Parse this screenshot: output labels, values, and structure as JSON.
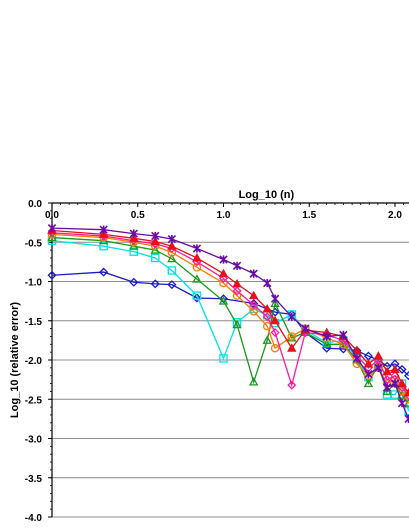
{
  "chart_data": {
    "type": "line",
    "xlabel": "Log_10 (n)",
    "ylabel": "Log_10 (relative error)",
    "xlim": [
      0,
      2.1
    ],
    "ylim": [
      -4.0,
      0.0
    ],
    "x_axis_position": "top",
    "x_ticks": [
      "0.0",
      "0.5",
      "1.0",
      "1.5",
      "2.0"
    ],
    "x_tick_values": [
      0,
      0.5,
      1.0,
      1.5,
      2.0
    ],
    "y_ticks": [
      "0.0",
      "-0.5",
      "-1.0",
      "-1.5",
      "-2.0",
      "-2.5",
      "-3.0",
      "-3.5",
      "-4.0"
    ],
    "y_tick_values": [
      0,
      -0.5,
      -1.0,
      -1.5,
      -2.0,
      -2.5,
      -3.0,
      -3.5,
      -4.0
    ],
    "grid": "horizontal",
    "legend": "none",
    "series": [
      {
        "color": "#1a1ac8",
        "marker": "diamond",
        "x": [
          0,
          0.301,
          0.477,
          0.602,
          0.699,
          0.845,
          1.0,
          1.176,
          1.301,
          1.398,
          1.477,
          1.602,
          1.699,
          1.778,
          1.845,
          1.903,
          1.954,
          2.0,
          2.041,
          2.079
        ],
        "y": [
          -0.92,
          -0.88,
          -1.01,
          -1.03,
          -1.04,
          -1.21,
          -1.22,
          -1.28,
          -1.39,
          -1.42,
          -1.65,
          -1.85,
          -1.86,
          -1.88,
          -1.95,
          -2.0,
          -2.08,
          -2.05,
          -2.12,
          -2.2
        ]
      },
      {
        "color": "#00e5e5",
        "marker": "square",
        "x": [
          0,
          0.301,
          0.477,
          0.602,
          0.699,
          0.845,
          1.0,
          1.079,
          1.176,
          1.255,
          1.301,
          1.398,
          1.477,
          1.602,
          1.699,
          1.778,
          1.845,
          1.903,
          1.954,
          2.0,
          2.041,
          2.079
        ],
        "y": [
          -0.48,
          -0.55,
          -0.62,
          -0.7,
          -0.86,
          -1.18,
          -1.98,
          -1.52,
          -1.35,
          -1.43,
          -1.53,
          -1.42,
          -1.62,
          -1.78,
          -1.75,
          -1.98,
          -2.22,
          -2.05,
          -2.44,
          -2.44,
          -2.3,
          -2.65
        ]
      },
      {
        "color": "#1a9a1a",
        "marker": "triangle",
        "x": [
          0,
          0.301,
          0.477,
          0.602,
          0.699,
          0.845,
          1.0,
          1.079,
          1.176,
          1.255,
          1.301,
          1.398,
          1.477,
          1.602,
          1.699,
          1.778,
          1.845,
          1.903,
          1.954,
          2.0,
          2.041,
          2.079
        ],
        "y": [
          -0.44,
          -0.48,
          -0.55,
          -0.6,
          -0.71,
          -0.97,
          -1.25,
          -1.55,
          -2.28,
          -1.75,
          -1.28,
          -1.72,
          -1.65,
          -1.8,
          -1.8,
          -2.0,
          -2.3,
          -2.05,
          -2.4,
          -2.3,
          -2.45,
          -2.55
        ]
      },
      {
        "color": "#ff7a00",
        "marker": "circle",
        "x": [
          0,
          0.301,
          0.477,
          0.602,
          0.699,
          0.845,
          1.0,
          1.079,
          1.176,
          1.255,
          1.301,
          1.398,
          1.477,
          1.602,
          1.699,
          1.778,
          1.845,
          1.903,
          1.954,
          2.0,
          2.041,
          2.079
        ],
        "y": [
          -0.4,
          -0.44,
          -0.5,
          -0.55,
          -0.63,
          -0.82,
          -1.02,
          -1.18,
          -1.38,
          -1.57,
          -1.85,
          -1.7,
          -1.6,
          -1.72,
          -1.8,
          -2.05,
          -2.2,
          -2.1,
          -2.3,
          -2.25,
          -2.4,
          -2.5
        ]
      },
      {
        "color": "#ff1aa0",
        "marker": "diamond",
        "x": [
          0,
          0.301,
          0.477,
          0.602,
          0.699,
          0.845,
          1.0,
          1.079,
          1.176,
          1.255,
          1.301,
          1.398,
          1.477,
          1.602,
          1.699,
          1.778,
          1.845,
          1.903,
          1.954,
          2.0,
          2.041,
          2.079
        ],
        "y": [
          -0.38,
          -0.42,
          -0.48,
          -0.52,
          -0.58,
          -0.75,
          -0.96,
          -1.12,
          -1.3,
          -1.45,
          -1.65,
          -2.32,
          -1.65,
          -1.68,
          -1.75,
          -1.95,
          -2.1,
          -2.0,
          -2.25,
          -2.2,
          -2.35,
          -2.45
        ]
      },
      {
        "color": "#e8101a",
        "marker": "triangle",
        "x": [
          0,
          0.301,
          0.477,
          0.602,
          0.699,
          0.845,
          1.0,
          1.079,
          1.176,
          1.255,
          1.301,
          1.398,
          1.477,
          1.602,
          1.699,
          1.778,
          1.845,
          1.903,
          1.954,
          2.0,
          2.041,
          2.079
        ],
        "y": [
          -0.35,
          -0.4,
          -0.45,
          -0.49,
          -0.55,
          -0.7,
          -0.9,
          -1.03,
          -1.18,
          -1.35,
          -1.5,
          -1.85,
          -1.62,
          -1.65,
          -1.7,
          -1.88,
          -2.05,
          -1.95,
          -2.15,
          -2.12,
          -2.3,
          -2.42
        ]
      },
      {
        "color": "#6a0aa8",
        "marker": "star",
        "x": [
          0,
          0.301,
          0.477,
          0.602,
          0.699,
          0.845,
          1.0,
          1.079,
          1.176,
          1.255,
          1.301,
          1.398,
          1.477,
          1.602,
          1.699,
          1.778,
          1.845,
          1.903,
          1.954,
          2.0,
          2.041,
          2.079
        ],
        "y": [
          -0.32,
          -0.34,
          -0.39,
          -0.42,
          -0.46,
          -0.58,
          -0.72,
          -0.8,
          -0.9,
          -1.02,
          -1.22,
          -1.45,
          -1.6,
          -1.7,
          -1.68,
          -1.98,
          -2.18,
          -2.1,
          -2.35,
          -2.3,
          -2.55,
          -2.75
        ]
      }
    ]
  }
}
